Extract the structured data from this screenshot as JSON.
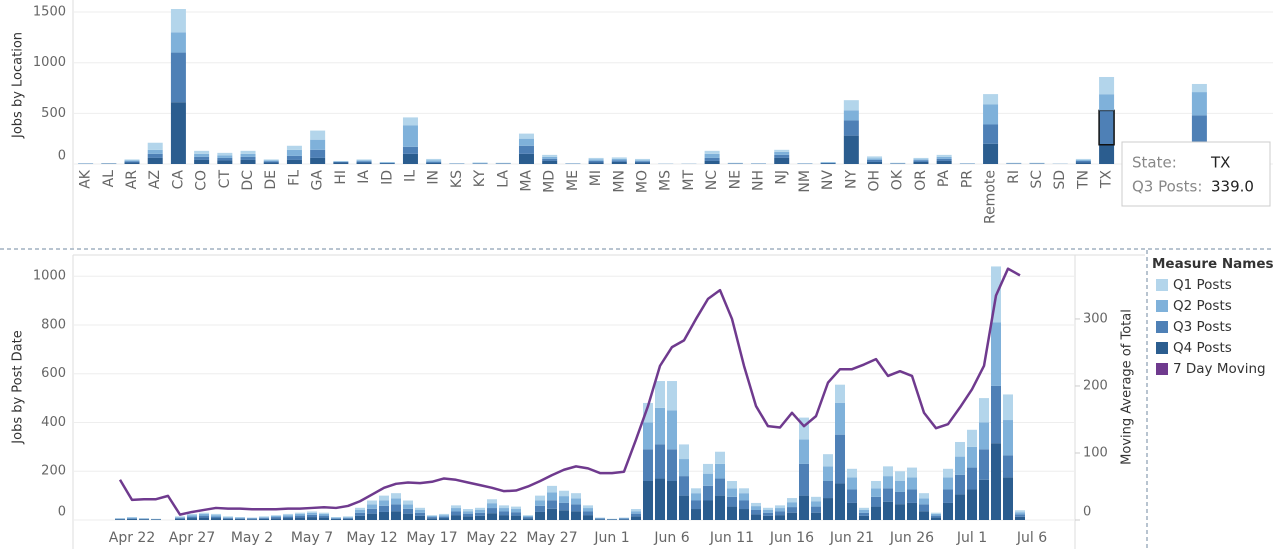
{
  "chart_data": [
    {
      "type": "bar",
      "y_label": "Jobs by Location",
      "categories": [
        "AK",
        "AL",
        "AR",
        "AZ",
        "CA",
        "CO",
        "CT",
        "DC",
        "DE",
        "FL",
        "GA",
        "HI",
        "IA",
        "ID",
        "IL",
        "IN",
        "KS",
        "KY",
        "LA",
        "MA",
        "MD",
        "ME",
        "MI",
        "MN",
        "MO",
        "MS",
        "MT",
        "NC",
        "NE",
        "NH",
        "NJ",
        "NM",
        "NV",
        "NY",
        "OH",
        "OK",
        "OR",
        "PA",
        "PR",
        "Remote",
        "RI",
        "SC",
        "SD",
        "TN",
        "TX",
        null,
        null,
        null,
        null
      ],
      "series": [
        {
          "name": "Q1 Posts",
          "color": "#b3d5eb",
          "values": [
            2,
            2,
            10,
            70,
            230,
            30,
            25,
            30,
            10,
            40,
            90,
            5,
            10,
            5,
            80,
            15,
            2,
            5,
            3,
            50,
            20,
            2,
            15,
            15,
            15,
            1,
            1,
            30,
            3,
            2,
            20,
            2,
            5,
            100,
            20,
            3,
            15,
            20,
            2,
            100,
            3,
            3,
            1,
            10,
            170,
            5,
            2,
            5,
            80
          ]
        },
        {
          "name": "Q2 Posts",
          "color": "#7fb1da",
          "values": [
            2,
            2,
            10,
            40,
            200,
            30,
            25,
            30,
            10,
            60,
            100,
            5,
            10,
            5,
            210,
            15,
            2,
            5,
            3,
            70,
            20,
            2,
            15,
            15,
            10,
            1,
            1,
            40,
            3,
            2,
            30,
            2,
            5,
            100,
            15,
            3,
            10,
            20,
            2,
            200,
            3,
            3,
            1,
            10,
            160,
            5,
            2,
            5,
            230
          ]
        },
        {
          "name": "Q3 Posts",
          "color": "#4e80b6",
          "values": [
            2,
            2,
            10,
            40,
            490,
            30,
            25,
            30,
            10,
            40,
            80,
            5,
            10,
            5,
            70,
            10,
            2,
            3,
            3,
            80,
            20,
            2,
            15,
            15,
            10,
            1,
            1,
            30,
            3,
            2,
            30,
            2,
            5,
            150,
            20,
            3,
            15,
            20,
            2,
            190,
            3,
            3,
            1,
            15,
            339,
            5,
            2,
            5,
            320
          ]
        },
        {
          "name": "Q4 Posts",
          "color": "#2b5d8f",
          "values": [
            2,
            3,
            15,
            60,
            610,
            40,
            35,
            40,
            15,
            40,
            60,
            15,
            15,
            5,
            100,
            10,
            2,
            3,
            3,
            100,
            30,
            2,
            15,
            20,
            15,
            1,
            1,
            30,
            3,
            2,
            60,
            2,
            5,
            280,
            20,
            3,
            20,
            30,
            2,
            200,
            3,
            3,
            1,
            15,
            190,
            10,
            2,
            5,
            160
          ]
        }
      ],
      "ylim": [
        0,
        1540
      ],
      "yticks": [
        0,
        500,
        1000,
        1500
      ],
      "grid": true
    },
    {
      "type": "bar",
      "y_label": "Jobs by Post Date",
      "y2_label": "Moving Average of Total",
      "categories": [
        null,
        "Apr 22",
        null,
        null,
        null,
        null,
        "Apr 27",
        null,
        null,
        null,
        null,
        "May 2",
        null,
        null,
        null,
        null,
        "May 7",
        null,
        null,
        null,
        null,
        "May 12",
        null,
        null,
        null,
        null,
        "May 17",
        null,
        null,
        null,
        null,
        "May 22",
        null,
        null,
        null,
        null,
        "May 27",
        null,
        null,
        null,
        null,
        "Jun 1",
        null,
        null,
        null,
        null,
        "Jun 6",
        null,
        null,
        null,
        null,
        "Jun 11",
        null,
        null,
        null,
        null,
        "Jun 16",
        null,
        null,
        null,
        null,
        "Jun 21",
        null,
        null,
        null,
        null,
        "Jun 26",
        null,
        null,
        null,
        null,
        "Jul 1",
        null,
        null,
        null,
        null,
        "Jul 6"
      ],
      "series": [
        {
          "name": "Q1 Posts",
          "color": "#b3d5eb",
          "values": [
            1,
            2,
            1,
            1,
            0,
            3,
            5,
            5,
            5,
            3,
            2,
            2,
            3,
            3,
            5,
            5,
            6,
            5,
            2,
            3,
            9,
            16,
            19,
            21,
            16,
            9,
            3,
            5,
            11,
            9,
            9,
            16,
            11,
            10,
            3,
            19,
            27,
            22,
            21,
            11,
            2,
            1,
            2,
            9,
            80,
            110,
            120,
            60,
            20,
            40,
            50,
            30,
            20,
            13,
            9,
            11,
            17,
            90,
            18,
            50,
            75,
            35,
            9,
            30,
            40,
            40,
            40,
            21,
            5,
            35,
            60,
            70,
            100,
            230,
            105,
            8,
            null
          ]
        },
        {
          "name": "Q2 Posts",
          "color": "#7fb1da",
          "values": [
            2,
            3,
            2,
            1,
            0,
            3,
            6,
            7,
            6,
            3,
            3,
            2,
            3,
            5,
            6,
            7,
            8,
            7,
            3,
            3,
            12,
            18,
            23,
            25,
            18,
            12,
            5,
            6,
            14,
            10,
            12,
            20,
            14,
            13,
            5,
            23,
            32,
            28,
            25,
            14,
            2,
            1,
            2,
            10,
            110,
            150,
            160,
            70,
            30,
            50,
            60,
            35,
            30,
            16,
            12,
            14,
            20,
            100,
            22,
            60,
            130,
            50,
            12,
            35,
            50,
            45,
            50,
            25,
            7,
            50,
            75,
            85,
            110,
            260,
            145,
            9,
            null
          ]
        },
        {
          "name": "Q3 Posts",
          "color": "#4e80b6",
          "values": [
            2,
            3,
            2,
            1,
            0,
            4,
            6,
            8,
            6,
            4,
            3,
            3,
            4,
            5,
            6,
            8,
            9,
            8,
            3,
            4,
            12,
            20,
            25,
            28,
            20,
            12,
            5,
            6,
            15,
            11,
            12,
            21,
            15,
            14,
            5,
            25,
            35,
            30,
            28,
            15,
            3,
            1,
            3,
            11,
            130,
            140,
            130,
            80,
            35,
            60,
            70,
            40,
            35,
            18,
            12,
            15,
            23,
            130,
            25,
            70,
            200,
            55,
            12,
            40,
            55,
            50,
            55,
            28,
            8,
            55,
            80,
            90,
            125,
            235,
            90,
            10,
            null
          ]
        },
        {
          "name": "Q4 Posts",
          "color": "#2b5d8f",
          "values": [
            3,
            4,
            3,
            2,
            0,
            5,
            8,
            10,
            8,
            5,
            4,
            3,
            5,
            7,
            8,
            10,
            12,
            10,
            4,
            5,
            17,
            26,
            33,
            36,
            26,
            17,
            7,
            8,
            20,
            15,
            17,
            28,
            20,
            18,
            7,
            33,
            46,
            40,
            36,
            20,
            3,
            2,
            3,
            15,
            160,
            170,
            160,
            100,
            45,
            80,
            100,
            55,
            45,
            23,
            17,
            20,
            30,
            100,
            30,
            90,
            150,
            70,
            17,
            55,
            75,
            65,
            70,
            36,
            10,
            70,
            105,
            125,
            165,
            315,
            175,
            13,
            null
          ]
        },
        {
          "name": "7 Day Moving",
          "color": "#6f3a8e",
          "type": "line",
          "axis": "y2",
          "values": [
            60,
            30,
            31,
            31,
            36,
            8,
            12,
            15,
            18,
            17,
            17,
            16,
            16,
            16,
            17,
            17,
            18,
            19,
            18,
            21,
            28,
            38,
            48,
            54,
            56,
            55,
            57,
            62,
            60,
            56,
            52,
            48,
            43,
            44,
            50,
            58,
            67,
            75,
            80,
            77,
            70,
            70,
            72,
            120,
            170,
            230,
            258,
            268,
            300,
            330,
            343,
            300,
            230,
            170,
            140,
            138,
            160,
            140,
            155,
            205,
            225,
            225,
            232,
            240,
            215,
            222,
            215,
            160,
            137,
            143,
            168,
            195,
            230,
            335,
            375,
            365,
            null
          ]
        }
      ],
      "ylim": [
        0,
        1050
      ],
      "yticks": [
        0,
        200,
        400,
        600,
        800,
        1000
      ],
      "y2lim": [
        0,
        382
      ],
      "y2ticks": [
        0,
        100,
        200,
        300
      ],
      "grid": true
    }
  ],
  "legend": {
    "title": "Measure Names"
  },
  "tooltip": {
    "state_label": "State:",
    "state": "TX",
    "measure_label": "Q3 Posts:",
    "value": "339.0"
  }
}
